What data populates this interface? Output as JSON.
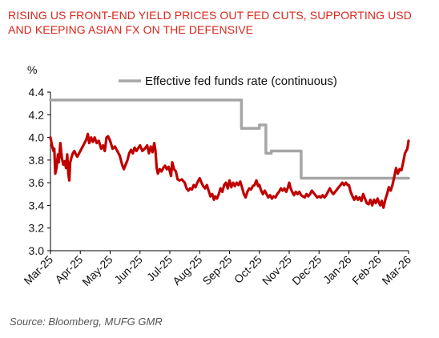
{
  "header": {
    "title": "RISING US FRONT-END YIELD PRICES OUT FED CUTS, SUPPORTING USD AND KEEPING ASIAN FX ON THE DEFENSIVE"
  },
  "footer": {
    "source": "Source: Bloomberg, MUFG GMR"
  },
  "colors": {
    "yield_series": "#c00000",
    "fed_funds": "#a6a6a6",
    "title": "#d9261c",
    "axis": "#000000"
  },
  "chart_data": {
    "type": "line",
    "ylabel": "%",
    "ylim": [
      3.0,
      4.4
    ],
    "yticks": [
      3.0,
      3.2,
      3.4,
      3.6,
      3.8,
      4.0,
      4.2,
      4.4
    ],
    "ytick_labels": [
      "3.0",
      "3.2",
      "3.4",
      "3.6",
      "3.8",
      "4.0",
      "4.2",
      "4.4"
    ],
    "xtick_labels": [
      "Mar-25",
      "Apr-25",
      "May-25",
      "Jun-25",
      "Jul-25",
      "Aug-25",
      "Sep-25",
      "Oct-25",
      "Nov-25",
      "Dec-25",
      "Jan-26",
      "Feb-26",
      "Mar-26"
    ],
    "x_range": [
      "Mar-25",
      "Mar-26"
    ],
    "grid": false,
    "legend_position": "top",
    "series": [
      {
        "name": "",
        "color": "#c00000",
        "points": [
          [
            0.0,
            4.0
          ],
          [
            0.05,
            3.93
          ],
          [
            0.1,
            3.88
          ],
          [
            0.13,
            3.9
          ],
          [
            0.16,
            3.68
          ],
          [
            0.2,
            3.73
          ],
          [
            0.25,
            3.85
          ],
          [
            0.28,
            3.78
          ],
          [
            0.33,
            3.95
          ],
          [
            0.38,
            3.82
          ],
          [
            0.43,
            3.76
          ],
          [
            0.48,
            3.79
          ],
          [
            0.52,
            3.73
          ],
          [
            0.56,
            3.85
          ],
          [
            0.6,
            3.68
          ],
          [
            0.63,
            3.62
          ],
          [
            0.66,
            3.78
          ],
          [
            0.7,
            3.82
          ],
          [
            0.75,
            3.86
          ],
          [
            0.8,
            3.88
          ],
          [
            0.85,
            3.85
          ],
          [
            0.9,
            3.83
          ],
          [
            1.0,
            3.88
          ],
          [
            1.1,
            3.93
          ],
          [
            1.2,
            3.98
          ],
          [
            1.25,
            4.03
          ],
          [
            1.3,
            3.95
          ],
          [
            1.36,
            4.0
          ],
          [
            1.42,
            3.96
          ],
          [
            1.48,
            4.0
          ],
          [
            1.55,
            3.95
          ],
          [
            1.62,
            3.97
          ],
          [
            1.7,
            3.9
          ],
          [
            1.76,
            3.93
          ],
          [
            1.82,
            3.88
          ],
          [
            1.88,
            4.0
          ],
          [
            1.93,
            4.01
          ],
          [
            2.0,
            3.97
          ],
          [
            2.08,
            3.9
          ],
          [
            2.16,
            3.92
          ],
          [
            2.24,
            3.88
          ],
          [
            2.32,
            3.84
          ],
          [
            2.4,
            3.76
          ],
          [
            2.46,
            3.72
          ],
          [
            2.52,
            3.76
          ],
          [
            2.58,
            3.8
          ],
          [
            2.64,
            3.86
          ],
          [
            2.7,
            3.89
          ],
          [
            2.76,
            3.86
          ],
          [
            2.82,
            3.91
          ],
          [
            2.88,
            3.88
          ],
          [
            3.0,
            3.93
          ],
          [
            3.08,
            3.88
          ],
          [
            3.16,
            3.9
          ],
          [
            3.24,
            3.93
          ],
          [
            3.3,
            3.86
          ],
          [
            3.36,
            3.92
          ],
          [
            3.42,
            3.87
          ],
          [
            3.48,
            3.95
          ],
          [
            3.52,
            3.88
          ],
          [
            3.56,
            3.73
          ],
          [
            3.6,
            3.68
          ],
          [
            3.66,
            3.72
          ],
          [
            3.72,
            3.7
          ],
          [
            3.78,
            3.73
          ],
          [
            3.84,
            3.75
          ],
          [
            3.9,
            3.72
          ],
          [
            3.96,
            3.74
          ],
          [
            4.0,
            3.7
          ],
          [
            4.04,
            3.66
          ],
          [
            4.08,
            3.78
          ],
          [
            4.14,
            3.72
          ],
          [
            4.2,
            3.7
          ],
          [
            4.26,
            3.63
          ],
          [
            4.32,
            3.62
          ],
          [
            4.4,
            3.63
          ],
          [
            4.5,
            3.6
          ],
          [
            4.56,
            3.55
          ],
          [
            4.62,
            3.53
          ],
          [
            4.68,
            3.55
          ],
          [
            4.74,
            3.54
          ],
          [
            4.8,
            3.58
          ],
          [
            4.86,
            3.56
          ],
          [
            4.92,
            3.6
          ],
          [
            4.96,
            3.62
          ],
          [
            5.0,
            3.64
          ],
          [
            5.06,
            3.6
          ],
          [
            5.12,
            3.57
          ],
          [
            5.18,
            3.55
          ],
          [
            5.24,
            3.58
          ],
          [
            5.3,
            3.53
          ],
          [
            5.36,
            3.48
          ],
          [
            5.42,
            3.5
          ],
          [
            5.48,
            3.45
          ],
          [
            5.52,
            3.48
          ],
          [
            5.58,
            3.46
          ],
          [
            5.64,
            3.5
          ],
          [
            5.7,
            3.55
          ],
          [
            5.76,
            3.52
          ],
          [
            5.82,
            3.58
          ],
          [
            5.88,
            3.6
          ],
          [
            5.94,
            3.55
          ],
          [
            6.0,
            3.62
          ],
          [
            6.06,
            3.56
          ],
          [
            6.12,
            3.6
          ],
          [
            6.18,
            3.57
          ],
          [
            6.24,
            3.6
          ],
          [
            6.3,
            3.58
          ],
          [
            6.36,
            3.61
          ],
          [
            6.42,
            3.56
          ],
          [
            6.48,
            3.5
          ],
          [
            6.54,
            3.47
          ],
          [
            6.6,
            3.52
          ],
          [
            6.66,
            3.55
          ],
          [
            6.72,
            3.54
          ],
          [
            6.78,
            3.57
          ],
          [
            6.84,
            3.58
          ],
          [
            6.9,
            3.62
          ],
          [
            6.96,
            3.57
          ],
          [
            7.0,
            3.58
          ],
          [
            7.06,
            3.53
          ],
          [
            7.12,
            3.5
          ],
          [
            7.18,
            3.53
          ],
          [
            7.24,
            3.5
          ],
          [
            7.3,
            3.47
          ],
          [
            7.36,
            3.49
          ],
          [
            7.42,
            3.46
          ],
          [
            7.48,
            3.48
          ],
          [
            7.54,
            3.47
          ],
          [
            7.6,
            3.5
          ],
          [
            7.66,
            3.52
          ],
          [
            7.72,
            3.55
          ],
          [
            7.78,
            3.53
          ],
          [
            7.84,
            3.55
          ],
          [
            7.9,
            3.52
          ],
          [
            7.96,
            3.56
          ],
          [
            8.0,
            3.6
          ],
          [
            8.05,
            3.55
          ],
          [
            8.1,
            3.52
          ],
          [
            8.16,
            3.49
          ],
          [
            8.22,
            3.52
          ],
          [
            8.28,
            3.5
          ],
          [
            8.34,
            3.52
          ],
          [
            8.4,
            3.49
          ],
          [
            8.46,
            3.48
          ],
          [
            8.52,
            3.47
          ],
          [
            8.58,
            3.5
          ],
          [
            8.64,
            3.48
          ],
          [
            8.7,
            3.5
          ],
          [
            8.76,
            3.53
          ],
          [
            8.82,
            3.51
          ],
          [
            8.88,
            3.49
          ],
          [
            8.94,
            3.47
          ],
          [
            9.0,
            3.48
          ],
          [
            9.06,
            3.47
          ],
          [
            9.12,
            3.49
          ],
          [
            9.18,
            3.47
          ],
          [
            9.24,
            3.49
          ],
          [
            9.3,
            3.52
          ],
          [
            9.36,
            3.55
          ],
          [
            9.42,
            3.52
          ],
          [
            9.48,
            3.5
          ],
          [
            9.54,
            3.52
          ],
          [
            9.6,
            3.54
          ],
          [
            9.66,
            3.56
          ],
          [
            9.72,
            3.58
          ],
          [
            9.78,
            3.6
          ],
          [
            9.84,
            3.58
          ],
          [
            9.9,
            3.6
          ],
          [
            9.96,
            3.58
          ],
          [
            10.0,
            3.58
          ],
          [
            10.06,
            3.52
          ],
          [
            10.12,
            3.48
          ],
          [
            10.18,
            3.45
          ],
          [
            10.24,
            3.48
          ],
          [
            10.3,
            3.45
          ],
          [
            10.36,
            3.47
          ],
          [
            10.42,
            3.44
          ],
          [
            10.48,
            3.5
          ],
          [
            10.54,
            3.46
          ],
          [
            10.6,
            3.42
          ],
          [
            10.66,
            3.41
          ],
          [
            10.72,
            3.45
          ],
          [
            10.78,
            3.4
          ],
          [
            10.84,
            3.45
          ],
          [
            10.9,
            3.42
          ],
          [
            10.96,
            3.46
          ],
          [
            11.0,
            3.43
          ],
          [
            11.05,
            3.4
          ],
          [
            11.1,
            3.44
          ],
          [
            11.16,
            3.38
          ],
          [
            11.22,
            3.45
          ],
          [
            11.28,
            3.5
          ],
          [
            11.34,
            3.56
          ],
          [
            11.4,
            3.53
          ],
          [
            11.46,
            3.58
          ],
          [
            11.52,
            3.65
          ],
          [
            11.58,
            3.73
          ],
          [
            11.64,
            3.68
          ],
          [
            11.7,
            3.72
          ],
          [
            11.76,
            3.71
          ],
          [
            11.82,
            3.78
          ],
          [
            11.88,
            3.86
          ],
          [
            11.92,
            3.88
          ],
          [
            11.96,
            3.9
          ],
          [
            12.0,
            3.97
          ]
        ]
      },
      {
        "name": "Effective fed funds rate (continuous)",
        "color": "#a6a6a6",
        "step": true,
        "points": [
          [
            0.0,
            4.33
          ],
          [
            6.4,
            4.33
          ],
          [
            6.4,
            4.08
          ],
          [
            7.0,
            4.08
          ],
          [
            7.0,
            4.11
          ],
          [
            7.22,
            4.11
          ],
          [
            7.22,
            3.86
          ],
          [
            7.4,
            3.86
          ],
          [
            7.4,
            3.88
          ],
          [
            8.4,
            3.88
          ],
          [
            8.4,
            3.64
          ],
          [
            12.0,
            3.64
          ]
        ]
      }
    ]
  }
}
